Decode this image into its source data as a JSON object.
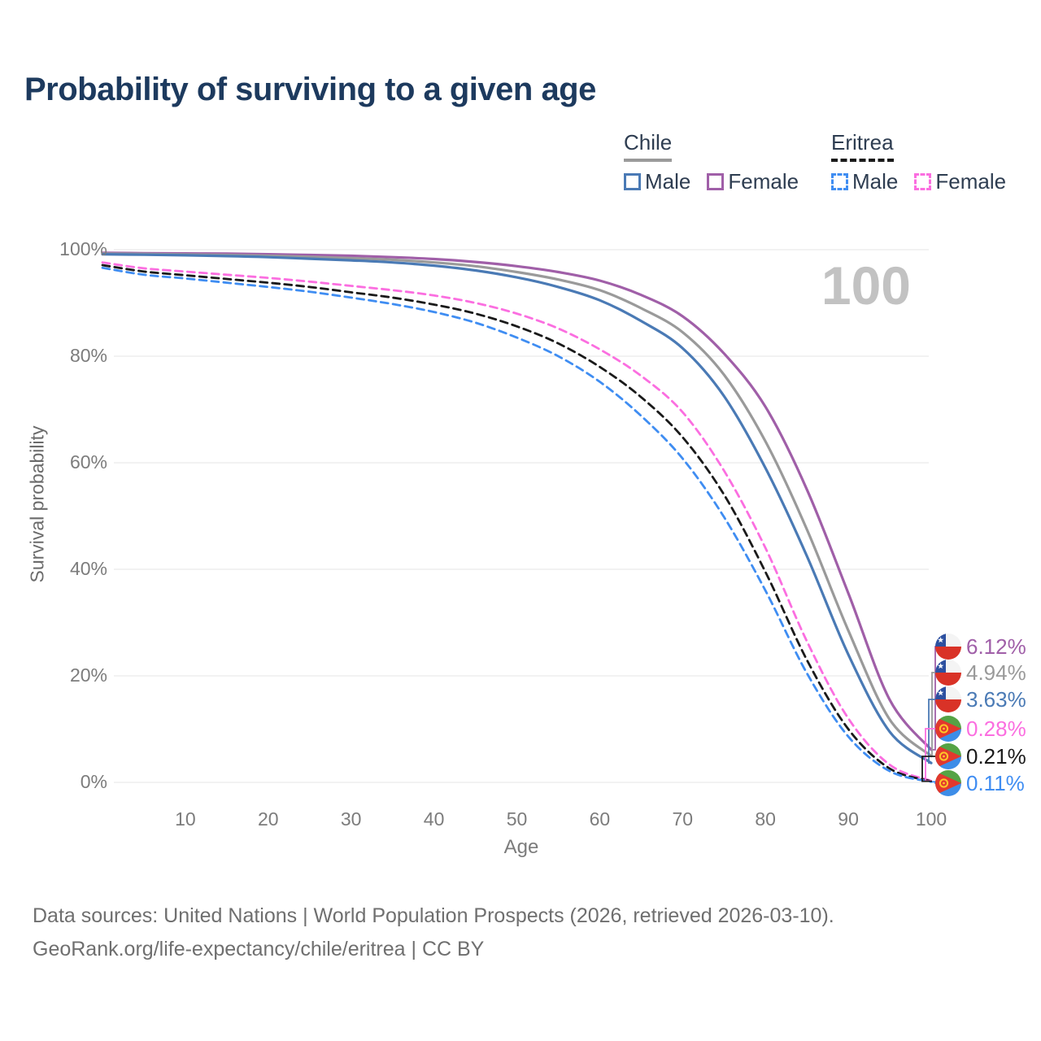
{
  "header": {
    "title": "Probability of surviving to a given age"
  },
  "legend": {
    "chile": {
      "title": "Chile",
      "male_label": "Male",
      "female_label": "Female"
    },
    "eritrea": {
      "title": "Eritrea",
      "male_label": "Male",
      "female_label": "Female"
    }
  },
  "chart_data": {
    "type": "line",
    "title": "Probability of surviving to a given age",
    "xlabel": "Age",
    "ylabel": "Survival probability",
    "xlim": [
      0,
      100
    ],
    "ylim": [
      0,
      100
    ],
    "grid": "horizontal-only",
    "legend_position": "top-right",
    "annotation": "100",
    "x_ticks": [
      10,
      20,
      30,
      40,
      50,
      60,
      70,
      80,
      90,
      100
    ],
    "y_ticks": [
      {
        "value": 0,
        "label": "0%"
      },
      {
        "value": 20,
        "label": "20%"
      },
      {
        "value": 40,
        "label": "40%"
      },
      {
        "value": 60,
        "label": "60%"
      },
      {
        "value": 80,
        "label": "80%"
      },
      {
        "value": 100,
        "label": "100%"
      }
    ],
    "x": [
      0,
      5,
      10,
      15,
      20,
      25,
      30,
      35,
      40,
      45,
      50,
      55,
      60,
      65,
      70,
      75,
      80,
      85,
      90,
      95,
      100
    ],
    "series": [
      {
        "id": "chile-female",
        "country": "Chile",
        "label": "Female",
        "flag": "chile",
        "color": "#a05fa8",
        "style": "solid",
        "end_label": "6.12%",
        "end_value": 6.12,
        "values": [
          99.4,
          99.35,
          99.3,
          99.25,
          99.15,
          99.0,
          98.85,
          98.6,
          98.25,
          97.7,
          96.9,
          95.8,
          94.2,
          91.5,
          87.5,
          80.5,
          70.5,
          55.0,
          35.5,
          15.5,
          6.12
        ]
      },
      {
        "id": "chile-all",
        "country": "Chile",
        "label": null,
        "flag": "chile",
        "color": "#9a9a9a",
        "style": "solid",
        "end_label": "4.94%",
        "end_value": 4.94,
        "values": [
          99.25,
          99.2,
          99.1,
          99.0,
          98.85,
          98.65,
          98.4,
          98.1,
          97.6,
          96.9,
          95.8,
          94.4,
          92.4,
          89.0,
          84.5,
          76.5,
          64.0,
          47.5,
          28.5,
          11.8,
          4.94
        ]
      },
      {
        "id": "chile-male",
        "country": "Chile",
        "label": "Male",
        "flag": "chile",
        "color": "#4a7ab5",
        "style": "solid",
        "end_label": "3.63%",
        "end_value": 3.63,
        "values": [
          99.15,
          99.05,
          98.95,
          98.8,
          98.6,
          98.3,
          98.0,
          97.6,
          97.0,
          96.1,
          94.8,
          93.0,
          90.5,
          86.6,
          81.5,
          72.5,
          59.0,
          42.5,
          24.0,
          9.5,
          3.63
        ]
      },
      {
        "id": "eritrea-female",
        "country": "Eritrea",
        "label": "Female",
        "flag": "eritrea",
        "color": "#fb6ee0",
        "style": "dashed",
        "end_label": "0.28%",
        "end_value": 0.28,
        "values": [
          97.6,
          96.5,
          95.9,
          95.3,
          94.7,
          94.0,
          93.2,
          92.4,
          91.4,
          90.0,
          88.0,
          85.2,
          81.3,
          76.3,
          69.5,
          58.5,
          44.0,
          26.5,
          12.0,
          3.3,
          0.28
        ]
      },
      {
        "id": "eritrea-all",
        "country": "Eritrea",
        "label": null,
        "flag": "eritrea",
        "color": "#1a1a1a",
        "style": "dashed",
        "end_label": "0.21%",
        "end_value": 0.21,
        "values": [
          97.1,
          95.9,
          95.2,
          94.5,
          93.8,
          93.0,
          92.0,
          91.0,
          89.7,
          88.0,
          85.6,
          82.4,
          78.0,
          72.3,
          64.8,
          54.0,
          39.5,
          23.0,
          10.0,
          2.6,
          0.21
        ]
      },
      {
        "id": "eritrea-male",
        "country": "Eritrea",
        "label": "Male",
        "flag": "eritrea",
        "color": "#3f8df2",
        "style": "dashed",
        "end_label": "0.11%",
        "end_value": 0.11,
        "values": [
          96.6,
          95.3,
          94.6,
          93.8,
          93.0,
          92.1,
          91.0,
          89.8,
          88.3,
          86.3,
          83.5,
          80.0,
          75.2,
          68.8,
          60.8,
          49.8,
          36.0,
          20.5,
          8.6,
          2.1,
          0.11
        ]
      }
    ]
  },
  "footer": {
    "line1": "Data sources: United Nations | World Population Prospects (2026, retrieved 2026-03-10).",
    "line2": "GeoRank.org/life-expectancy/chile/eritrea | CC BY"
  }
}
